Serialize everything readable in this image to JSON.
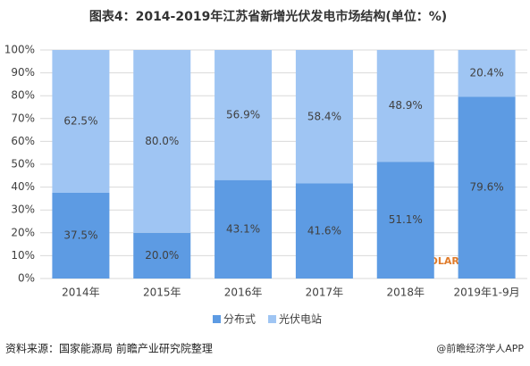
{
  "chart_data": {
    "type": "stacked_bar",
    "title": "图表4：2014-2019年江苏省新增光伏发电市场结构(单位：%)",
    "categories": [
      "2014年",
      "2015年",
      "2016年",
      "2017年",
      "2018年",
      "2019年1-9月"
    ],
    "series": [
      {
        "name": "分布式",
        "color": "#5d9be3",
        "values": [
          37.5,
          20.0,
          43.1,
          41.6,
          51.1,
          79.6
        ],
        "value_labels": [
          "37.5%",
          "20.0%",
          "43.1%",
          "41.6%",
          "51.1%",
          "79.6%"
        ]
      },
      {
        "name": "光伏电站",
        "color": "#9fc5f3",
        "values": [
          62.5,
          80.0,
          56.9,
          58.4,
          48.9,
          20.4
        ],
        "value_labels": [
          "62.5%",
          "80.0%",
          "56.9%",
          "58.4%",
          "48.9%",
          "20.4%"
        ]
      }
    ],
    "ylim": [
      0,
      100
    ],
    "yticks": [
      {
        "value": 0,
        "label": "0%"
      },
      {
        "value": 10,
        "label": "10%"
      },
      {
        "value": 20,
        "label": "20%"
      },
      {
        "value": 30,
        "label": "30%"
      },
      {
        "value": 40,
        "label": "40%"
      },
      {
        "value": 50,
        "label": "50%"
      },
      {
        "value": 60,
        "label": "60%"
      },
      {
        "value": 70,
        "label": "70%"
      },
      {
        "value": 80,
        "label": "80%"
      },
      {
        "value": 90,
        "label": "90%"
      },
      {
        "value": 100,
        "label": "100%"
      }
    ],
    "grid": true,
    "legend": "bottom",
    "source": "资料来源：国家能源局 前瞻产业研究院整理",
    "annotations": [
      "SOLARZOOM",
      "@前瞻经济学人APP"
    ]
  }
}
